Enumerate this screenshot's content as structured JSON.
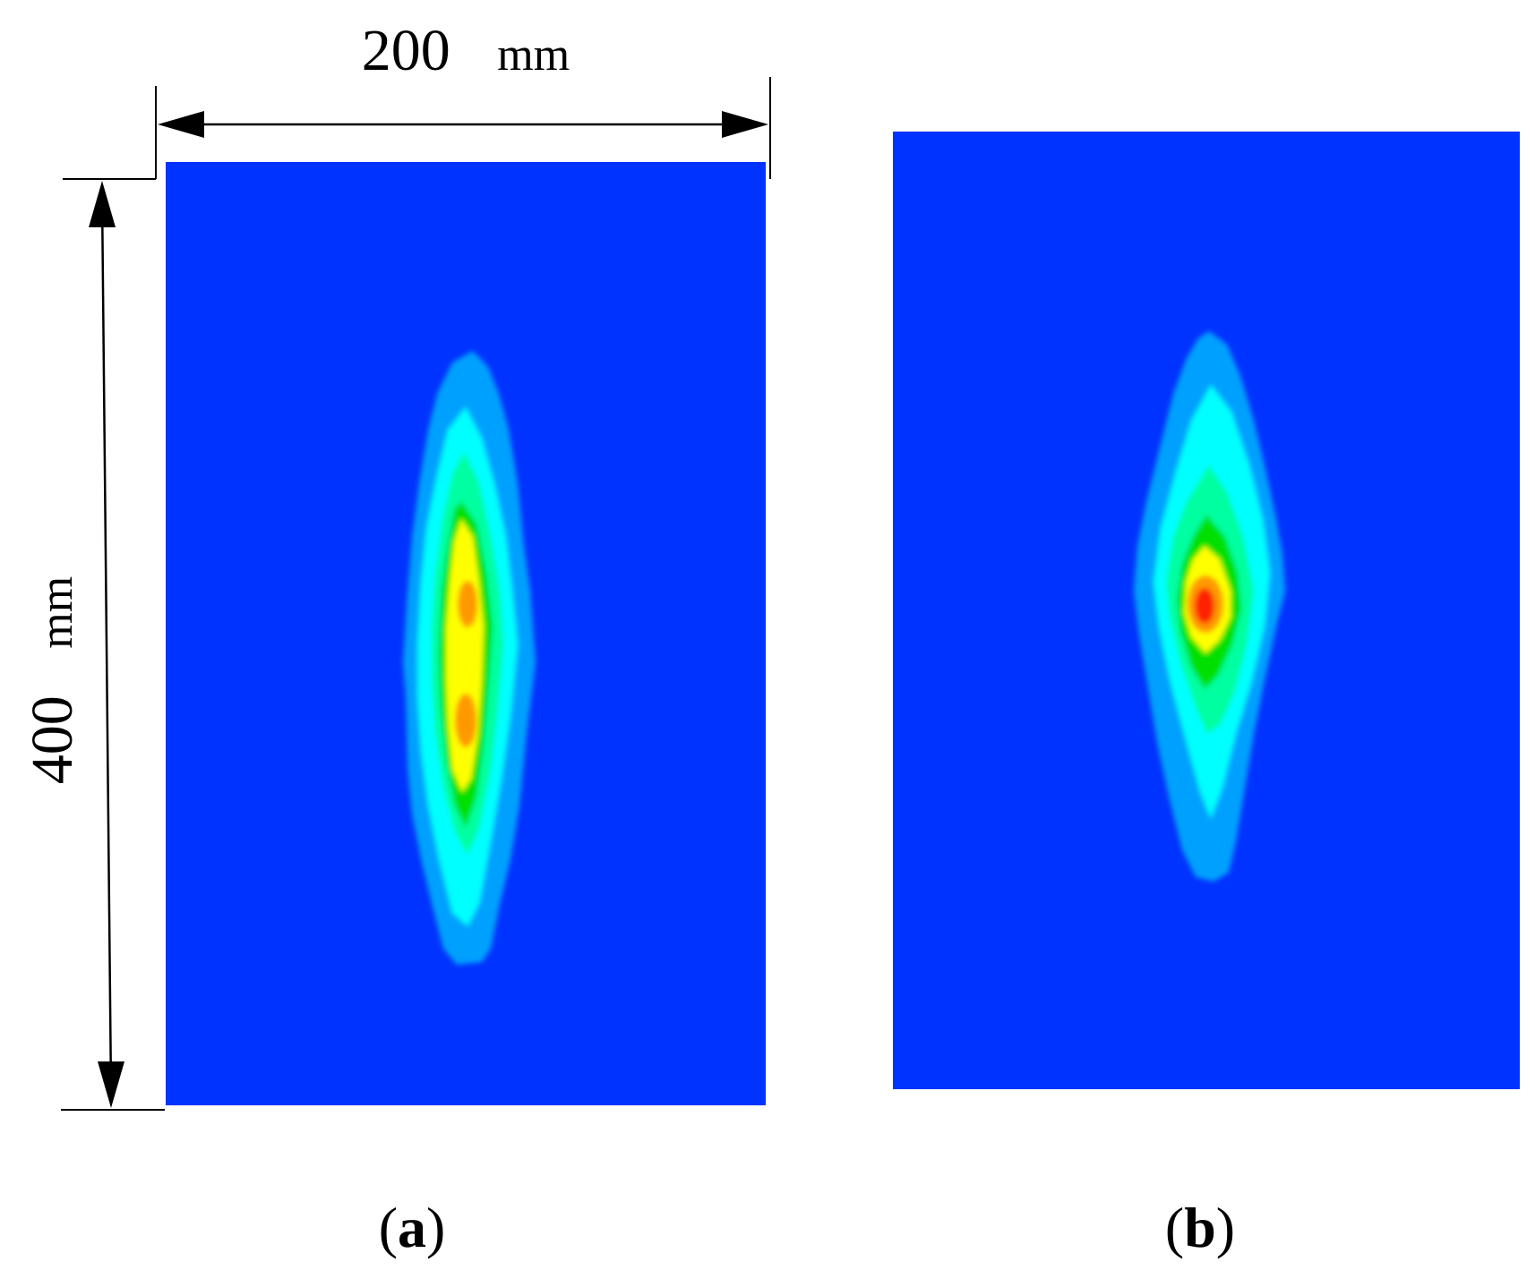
{
  "figure": {
    "width_dimension": {
      "value": "200",
      "unit": "mm"
    },
    "height_dimension": {
      "value": "400",
      "unit": "mm"
    },
    "panels": [
      {
        "id": "a",
        "label_open": "(",
        "label_letter": "a",
        "label_close": ")"
      },
      {
        "id": "b",
        "label_open": "(",
        "label_letter": "b",
        "label_close": ")"
      }
    ],
    "colors": {
      "background_field": "#0033ff",
      "level_1": "#00a0ff",
      "level_2": "#00ffff",
      "level_3": "#00ffa0",
      "level_4": "#00e000",
      "level_5": "#ffff00",
      "level_6": "#ff9900",
      "level_7": "#ff2200",
      "dimension_lines": "#000000"
    }
  }
}
